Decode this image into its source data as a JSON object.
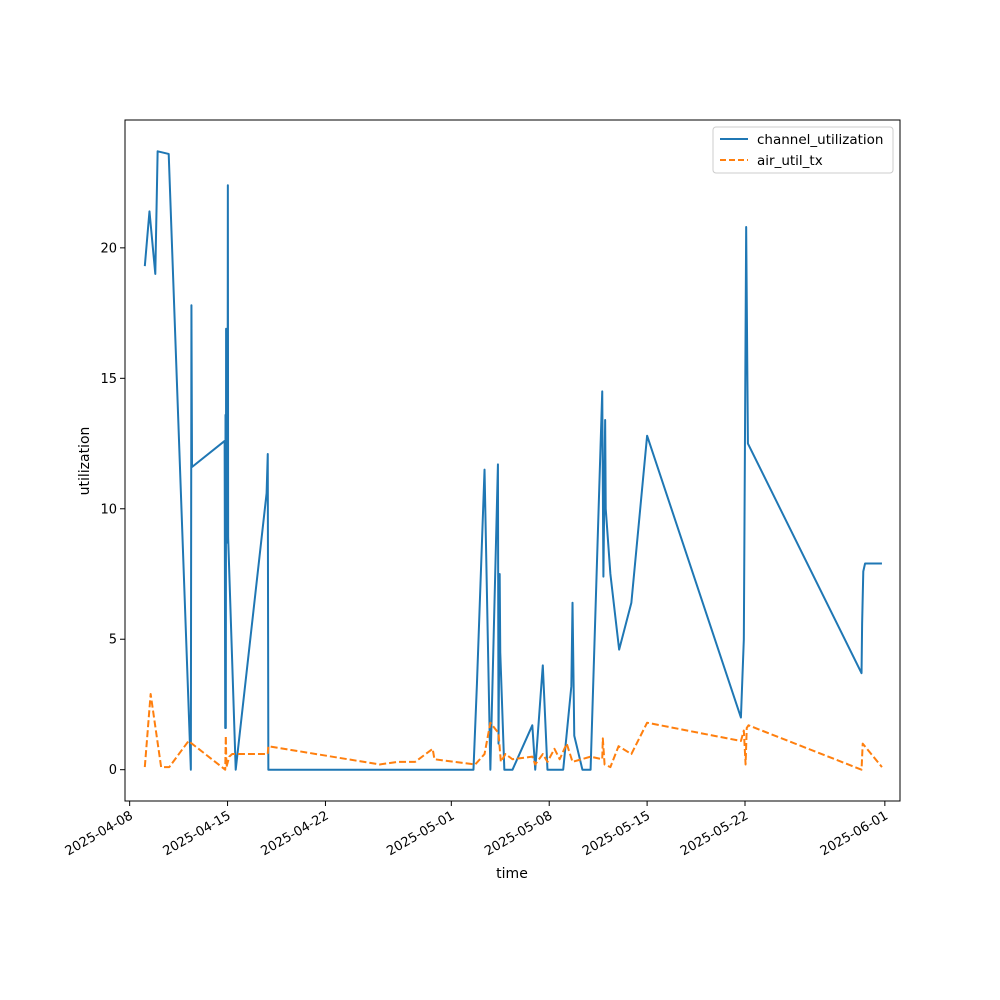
{
  "chart_data": {
    "type": "line",
    "title": "",
    "xlabel": "time",
    "ylabel": "utilization",
    "x_type": "date",
    "xlim": [
      "2025-04-07T16:00",
      "2025-06-02T02:00"
    ],
    "ylim": [
      -1.2,
      24.9
    ],
    "x_ticks": [
      "2025-04-08",
      "2025-04-15",
      "2025-04-22",
      "2025-05-01",
      "2025-05-08",
      "2025-05-15",
      "2025-05-22",
      "2025-06-01"
    ],
    "y_ticks": [
      0,
      5,
      10,
      15,
      20
    ],
    "grid": false,
    "legend_position": "upper right",
    "series": [
      {
        "name": "channel_utilization",
        "color": "#1f77b4",
        "dash": "solid",
        "points": [
          [
            "2025-04-09T02:00",
            19.3
          ],
          [
            "2025-04-09T10:00",
            21.4
          ],
          [
            "2025-04-09T20:00",
            19.0
          ],
          [
            "2025-04-10T00:00",
            23.7
          ],
          [
            "2025-04-10T19:00",
            23.6
          ],
          [
            "2025-04-12T09:00",
            0.0
          ],
          [
            "2025-04-12T10:00",
            17.8
          ],
          [
            "2025-04-12T11:00",
            11.6
          ],
          [
            "2025-04-14T19:00",
            12.6
          ],
          [
            "2025-04-14T20:00",
            1.6
          ],
          [
            "2025-04-14T20:30",
            13.6
          ],
          [
            "2025-04-14T21:00",
            1.6
          ],
          [
            "2025-04-14T21:30",
            16.9
          ],
          [
            "2025-04-14T22:00",
            16.3
          ],
          [
            "2025-04-15T00:00",
            8.7
          ],
          [
            "2025-04-15T00:30",
            22.4
          ],
          [
            "2025-04-15T01:00",
            8.9
          ],
          [
            "2025-04-15T14:00",
            0.0
          ],
          [
            "2025-04-17T19:00",
            10.6
          ],
          [
            "2025-04-17T21:00",
            12.1
          ],
          [
            "2025-04-17T22:00",
            0.0
          ],
          [
            "2025-05-02T14:00",
            0.0
          ],
          [
            "2025-05-02T20:00",
            3.3
          ],
          [
            "2025-05-03T09:00",
            11.5
          ],
          [
            "2025-05-03T19:00",
            0.0
          ],
          [
            "2025-05-04T08:00",
            11.7
          ],
          [
            "2025-05-04T09:00",
            1.0
          ],
          [
            "2025-05-04T11:00",
            7.5
          ],
          [
            "2025-05-04T12:00",
            4.5
          ],
          [
            "2025-05-04T19:00",
            0.0
          ],
          [
            "2025-05-05T09:00",
            0.0
          ],
          [
            "2025-05-06T19:00",
            1.7
          ],
          [
            "2025-05-07T00:00",
            0.0
          ],
          [
            "2025-05-07T13:00",
            4.0
          ],
          [
            "2025-05-07T21:00",
            0.0
          ],
          [
            "2025-05-09T00:00",
            0.0
          ],
          [
            "2025-05-09T14:00",
            3.2
          ],
          [
            "2025-05-09T16:00",
            6.4
          ],
          [
            "2025-05-09T19:00",
            1.3
          ],
          [
            "2025-05-10T09:00",
            0.0
          ],
          [
            "2025-05-10T23:00",
            0.0
          ],
          [
            "2025-05-11T19:00",
            14.5
          ],
          [
            "2025-05-11T21:00",
            7.4
          ],
          [
            "2025-05-12T00:00",
            13.4
          ],
          [
            "2025-05-12T01:00",
            10.0
          ],
          [
            "2025-05-12T09:00",
            7.5
          ],
          [
            "2025-05-13T00:00",
            4.6
          ],
          [
            "2025-05-13T21:00",
            6.4
          ],
          [
            "2025-05-15T00:00",
            12.8
          ],
          [
            "2025-05-21T17:00",
            2.0
          ],
          [
            "2025-05-21T22:00",
            5.0
          ],
          [
            "2025-05-22T02:00",
            20.8
          ],
          [
            "2025-05-22T05:00",
            12.5
          ],
          [
            "2025-05-30T08:00",
            3.7
          ],
          [
            "2025-05-30T09:00",
            5.6
          ],
          [
            "2025-05-30T11:00",
            7.6
          ],
          [
            "2025-05-30T14:00",
            7.9
          ],
          [
            "2025-05-31T19:00",
            7.9
          ]
        ]
      },
      {
        "name": "air_util_tx",
        "color": "#ff7f0e",
        "dash": "dashed",
        "points": [
          [
            "2025-04-09T02:00",
            0.1
          ],
          [
            "2025-04-09T12:00",
            2.9
          ],
          [
            "2025-04-10T06:00",
            0.1
          ],
          [
            "2025-04-10T20:00",
            0.1
          ],
          [
            "2025-04-12T05:00",
            1.1
          ],
          [
            "2025-04-14T20:00",
            0.0
          ],
          [
            "2025-04-14T21:00",
            1.3
          ],
          [
            "2025-04-14T22:00",
            0.1
          ],
          [
            "2025-04-15T03:00",
            0.5
          ],
          [
            "2025-04-15T08:00",
            0.6
          ],
          [
            "2025-04-17T21:00",
            0.6
          ],
          [
            "2025-04-17T22:00",
            0.9
          ],
          [
            "2025-04-25T21:00",
            0.2
          ],
          [
            "2025-04-27T04:00",
            0.3
          ],
          [
            "2025-04-28T10:00",
            0.3
          ],
          [
            "2025-04-29T16:00",
            0.8
          ],
          [
            "2025-04-29T19:00",
            0.4
          ],
          [
            "2025-05-02T17:00",
            0.2
          ],
          [
            "2025-05-03T09:00",
            0.6
          ],
          [
            "2025-05-03T19:00",
            1.8
          ],
          [
            "2025-05-04T09:00",
            1.4
          ],
          [
            "2025-05-04T13:00",
            0.3
          ],
          [
            "2025-05-04T21:00",
            0.6
          ],
          [
            "2025-05-05T09:00",
            0.4
          ],
          [
            "2025-05-06T19:00",
            0.5
          ],
          [
            "2025-05-07T00:00",
            0.2
          ],
          [
            "2025-05-07T13:00",
            0.6
          ],
          [
            "2025-05-07T21:00",
            0.3
          ],
          [
            "2025-05-08T09:00",
            0.8
          ],
          [
            "2025-05-08T18:00",
            0.4
          ],
          [
            "2025-05-09T06:00",
            1.0
          ],
          [
            "2025-05-09T16:00",
            0.3
          ],
          [
            "2025-05-10T23:00",
            0.5
          ],
          [
            "2025-05-11T19:00",
            0.4
          ],
          [
            "2025-05-11T20:00",
            1.2
          ],
          [
            "2025-05-11T23:00",
            0.2
          ],
          [
            "2025-05-12T09:00",
            0.1
          ],
          [
            "2025-05-12T23:00",
            0.9
          ],
          [
            "2025-05-13T21:00",
            0.6
          ],
          [
            "2025-05-15T00:00",
            1.8
          ],
          [
            "2025-05-21T17:00",
            1.1
          ],
          [
            "2025-05-21T22:00",
            1.5
          ],
          [
            "2025-05-22T01:00",
            0.2
          ],
          [
            "2025-05-22T03:00",
            1.6
          ],
          [
            "2025-05-22T06:00",
            1.7
          ],
          [
            "2025-05-30T08:00",
            0.0
          ],
          [
            "2025-05-30T10:00",
            1.0
          ],
          [
            "2025-05-31T19:00",
            0.1
          ]
        ]
      }
    ]
  }
}
